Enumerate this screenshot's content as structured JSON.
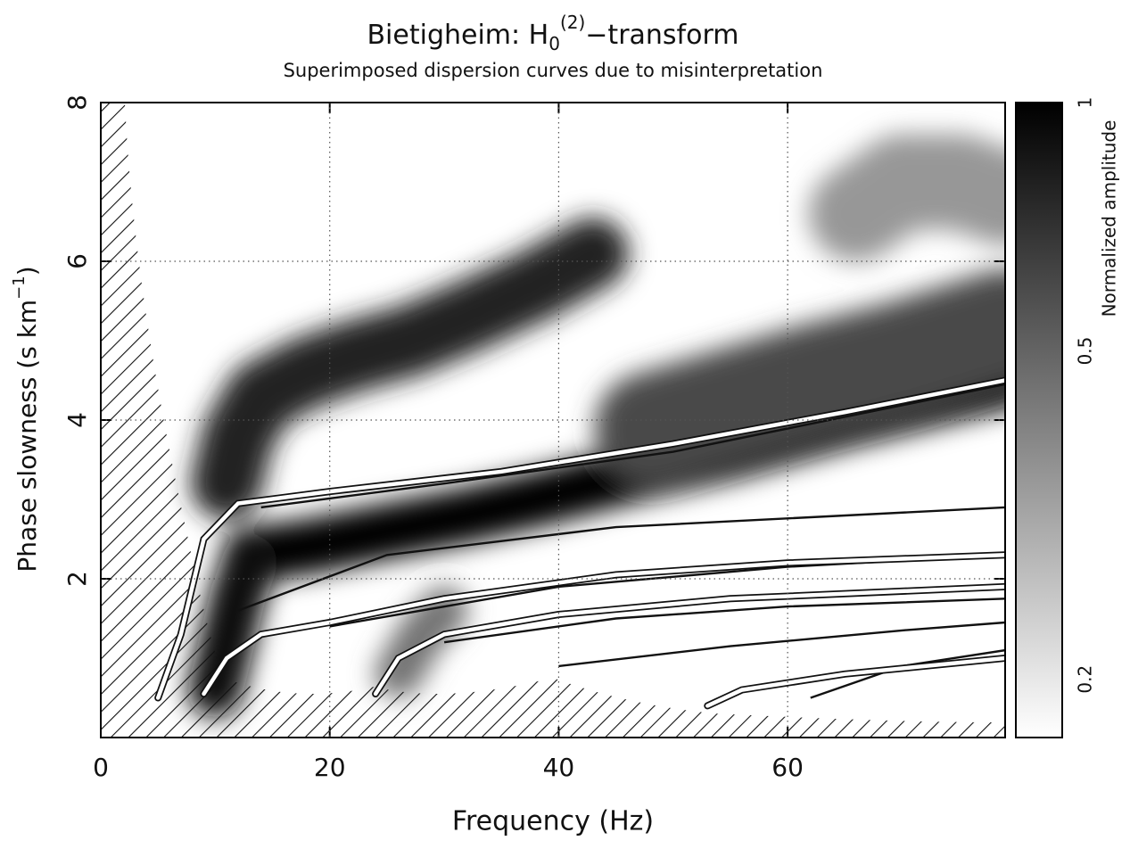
{
  "chart_data": {
    "type": "dispersion-image",
    "title": {
      "prefix": "Bietigheim: H",
      "subscript": "0",
      "superscript": "(2)",
      "suffix": "−transform"
    },
    "subtitle": "Superimposed dispersion curves due to misinterpretation",
    "x_label": "Frequency (Hz)",
    "y_label": {
      "text": "Phase slowness (s km",
      "superscript": "−1",
      "suffix": ")"
    },
    "xlim": [
      0,
      79
    ],
    "ylim": [
      0,
      8
    ],
    "xticks": [
      0,
      20,
      40,
      60
    ],
    "yticks": [
      2,
      4,
      6,
      8
    ],
    "grid": true,
    "colorbar": {
      "label": "Normalized amplitude",
      "lim": [
        0.17,
        1
      ],
      "ticks": [
        0.2,
        0.5,
        1
      ],
      "scale": "log"
    },
    "ridges": [
      {
        "x": [
          11,
          12,
          14,
          18,
          22,
          27,
          32,
          38,
          43
        ],
        "y": [
          3.2,
          3.8,
          4.3,
          4.6,
          4.8,
          5.0,
          5.3,
          5.7,
          6.1
        ],
        "amplitude": 0.8,
        "width": 0.9
      },
      {
        "x": [
          13,
          18,
          25,
          32,
          38,
          46,
          55,
          65,
          79
        ],
        "y": [
          2.3,
          2.4,
          2.6,
          2.8,
          3.0,
          3.3,
          3.6,
          4.0,
          4.5
        ],
        "amplitude": 1,
        "width": 0.7
      },
      {
        "x": [
          48,
          55,
          62,
          70,
          79
        ],
        "y": [
          3.9,
          4.2,
          4.5,
          4.8,
          5.2
        ],
        "amplitude": 0.6,
        "width": 1.4
      },
      {
        "x": [
          66,
          70,
          75,
          79
        ],
        "y": [
          6.6,
          7.0,
          7.0,
          6.8
        ],
        "amplitude": 0.35,
        "width": 1.2
      },
      {
        "x": [
          10,
          11,
          12,
          13
        ],
        "y": [
          0.6,
          1.2,
          1.8,
          2.2
        ],
        "amplitude": 0.9,
        "width": 0.7
      },
      {
        "x": [
          26,
          28,
          30
        ],
        "y": [
          0.8,
          1.3,
          1.6
        ],
        "amplitude": 0.45,
        "width": 0.6
      }
    ],
    "white_curves": [
      {
        "x": [
          5,
          7,
          9,
          12,
          20,
          35,
          50,
          65,
          79
        ],
        "y": [
          0.5,
          1.3,
          2.5,
          2.95,
          3.1,
          3.35,
          3.7,
          4.1,
          4.5
        ]
      },
      {
        "x": [
          9,
          11,
          14,
          20,
          30,
          45,
          60,
          79
        ],
        "y": [
          0.55,
          1.0,
          1.3,
          1.45,
          1.75,
          2.05,
          2.2,
          2.3
        ]
      },
      {
        "x": [
          24,
          26,
          30,
          40,
          55,
          79
        ],
        "y": [
          0.55,
          1.0,
          1.3,
          1.55,
          1.75,
          1.9
        ]
      },
      {
        "x": [
          53,
          56,
          65,
          79
        ],
        "y": [
          0.4,
          0.6,
          0.8,
          1.0
        ]
      }
    ],
    "black_curves": [
      {
        "x": [
          14,
          30,
          50,
          79
        ],
        "y": [
          2.9,
          3.2,
          3.6,
          4.45
        ]
      },
      {
        "x": [
          12,
          25,
          45,
          79
        ],
        "y": [
          1.6,
          2.3,
          2.65,
          2.9
        ]
      },
      {
        "x": [
          20,
          40,
          60,
          79
        ],
        "y": [
          1.4,
          1.9,
          2.15,
          2.3
        ]
      },
      {
        "x": [
          30,
          45,
          60,
          79
        ],
        "y": [
          1.2,
          1.5,
          1.65,
          1.75
        ]
      },
      {
        "x": [
          40,
          55,
          70,
          79
        ],
        "y": [
          0.9,
          1.15,
          1.35,
          1.45
        ]
      },
      {
        "x": [
          62,
          70,
          79
        ],
        "y": [
          0.5,
          0.9,
          1.1
        ]
      }
    ]
  }
}
